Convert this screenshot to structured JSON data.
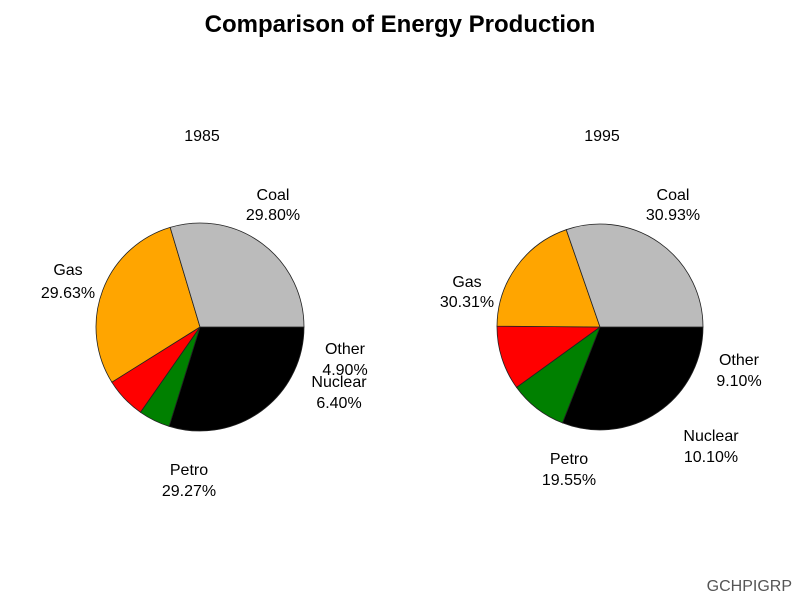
{
  "footer": {
    "label": "GCHPIGRP"
  },
  "chart_data": {
    "type": "pie",
    "title": "Comparison of Energy Production",
    "category_colors": {
      "Coal": "#000000",
      "Other": "#008000",
      "Nuclear": "#ff0000",
      "Petro": "#ffa500",
      "Gas": "#bbbbbb"
    },
    "charts": [
      {
        "title": "1985",
        "slices": [
          {
            "label": "Coal",
            "value": 29.8,
            "value_label": "29.80%"
          },
          {
            "label": "Other",
            "value": 4.9,
            "value_label": "4.90%"
          },
          {
            "label": "Nuclear",
            "value": 6.4,
            "value_label": "6.40%"
          },
          {
            "label": "Petro",
            "value": 29.27,
            "value_label": "29.27%"
          },
          {
            "label": "Gas",
            "value": 29.63,
            "value_label": "29.63%"
          }
        ]
      },
      {
        "title": "1995",
        "slices": [
          {
            "label": "Coal",
            "value": 30.93,
            "value_label": "30.93%"
          },
          {
            "label": "Other",
            "value": 9.1,
            "value_label": "9.10%"
          },
          {
            "label": "Nuclear",
            "value": 10.1,
            "value_label": "10.10%"
          },
          {
            "label": "Petro",
            "value": 19.55,
            "value_label": "19.55%"
          },
          {
            "label": "Gas",
            "value": 30.31,
            "value_label": "30.31%"
          }
        ]
      }
    ]
  }
}
